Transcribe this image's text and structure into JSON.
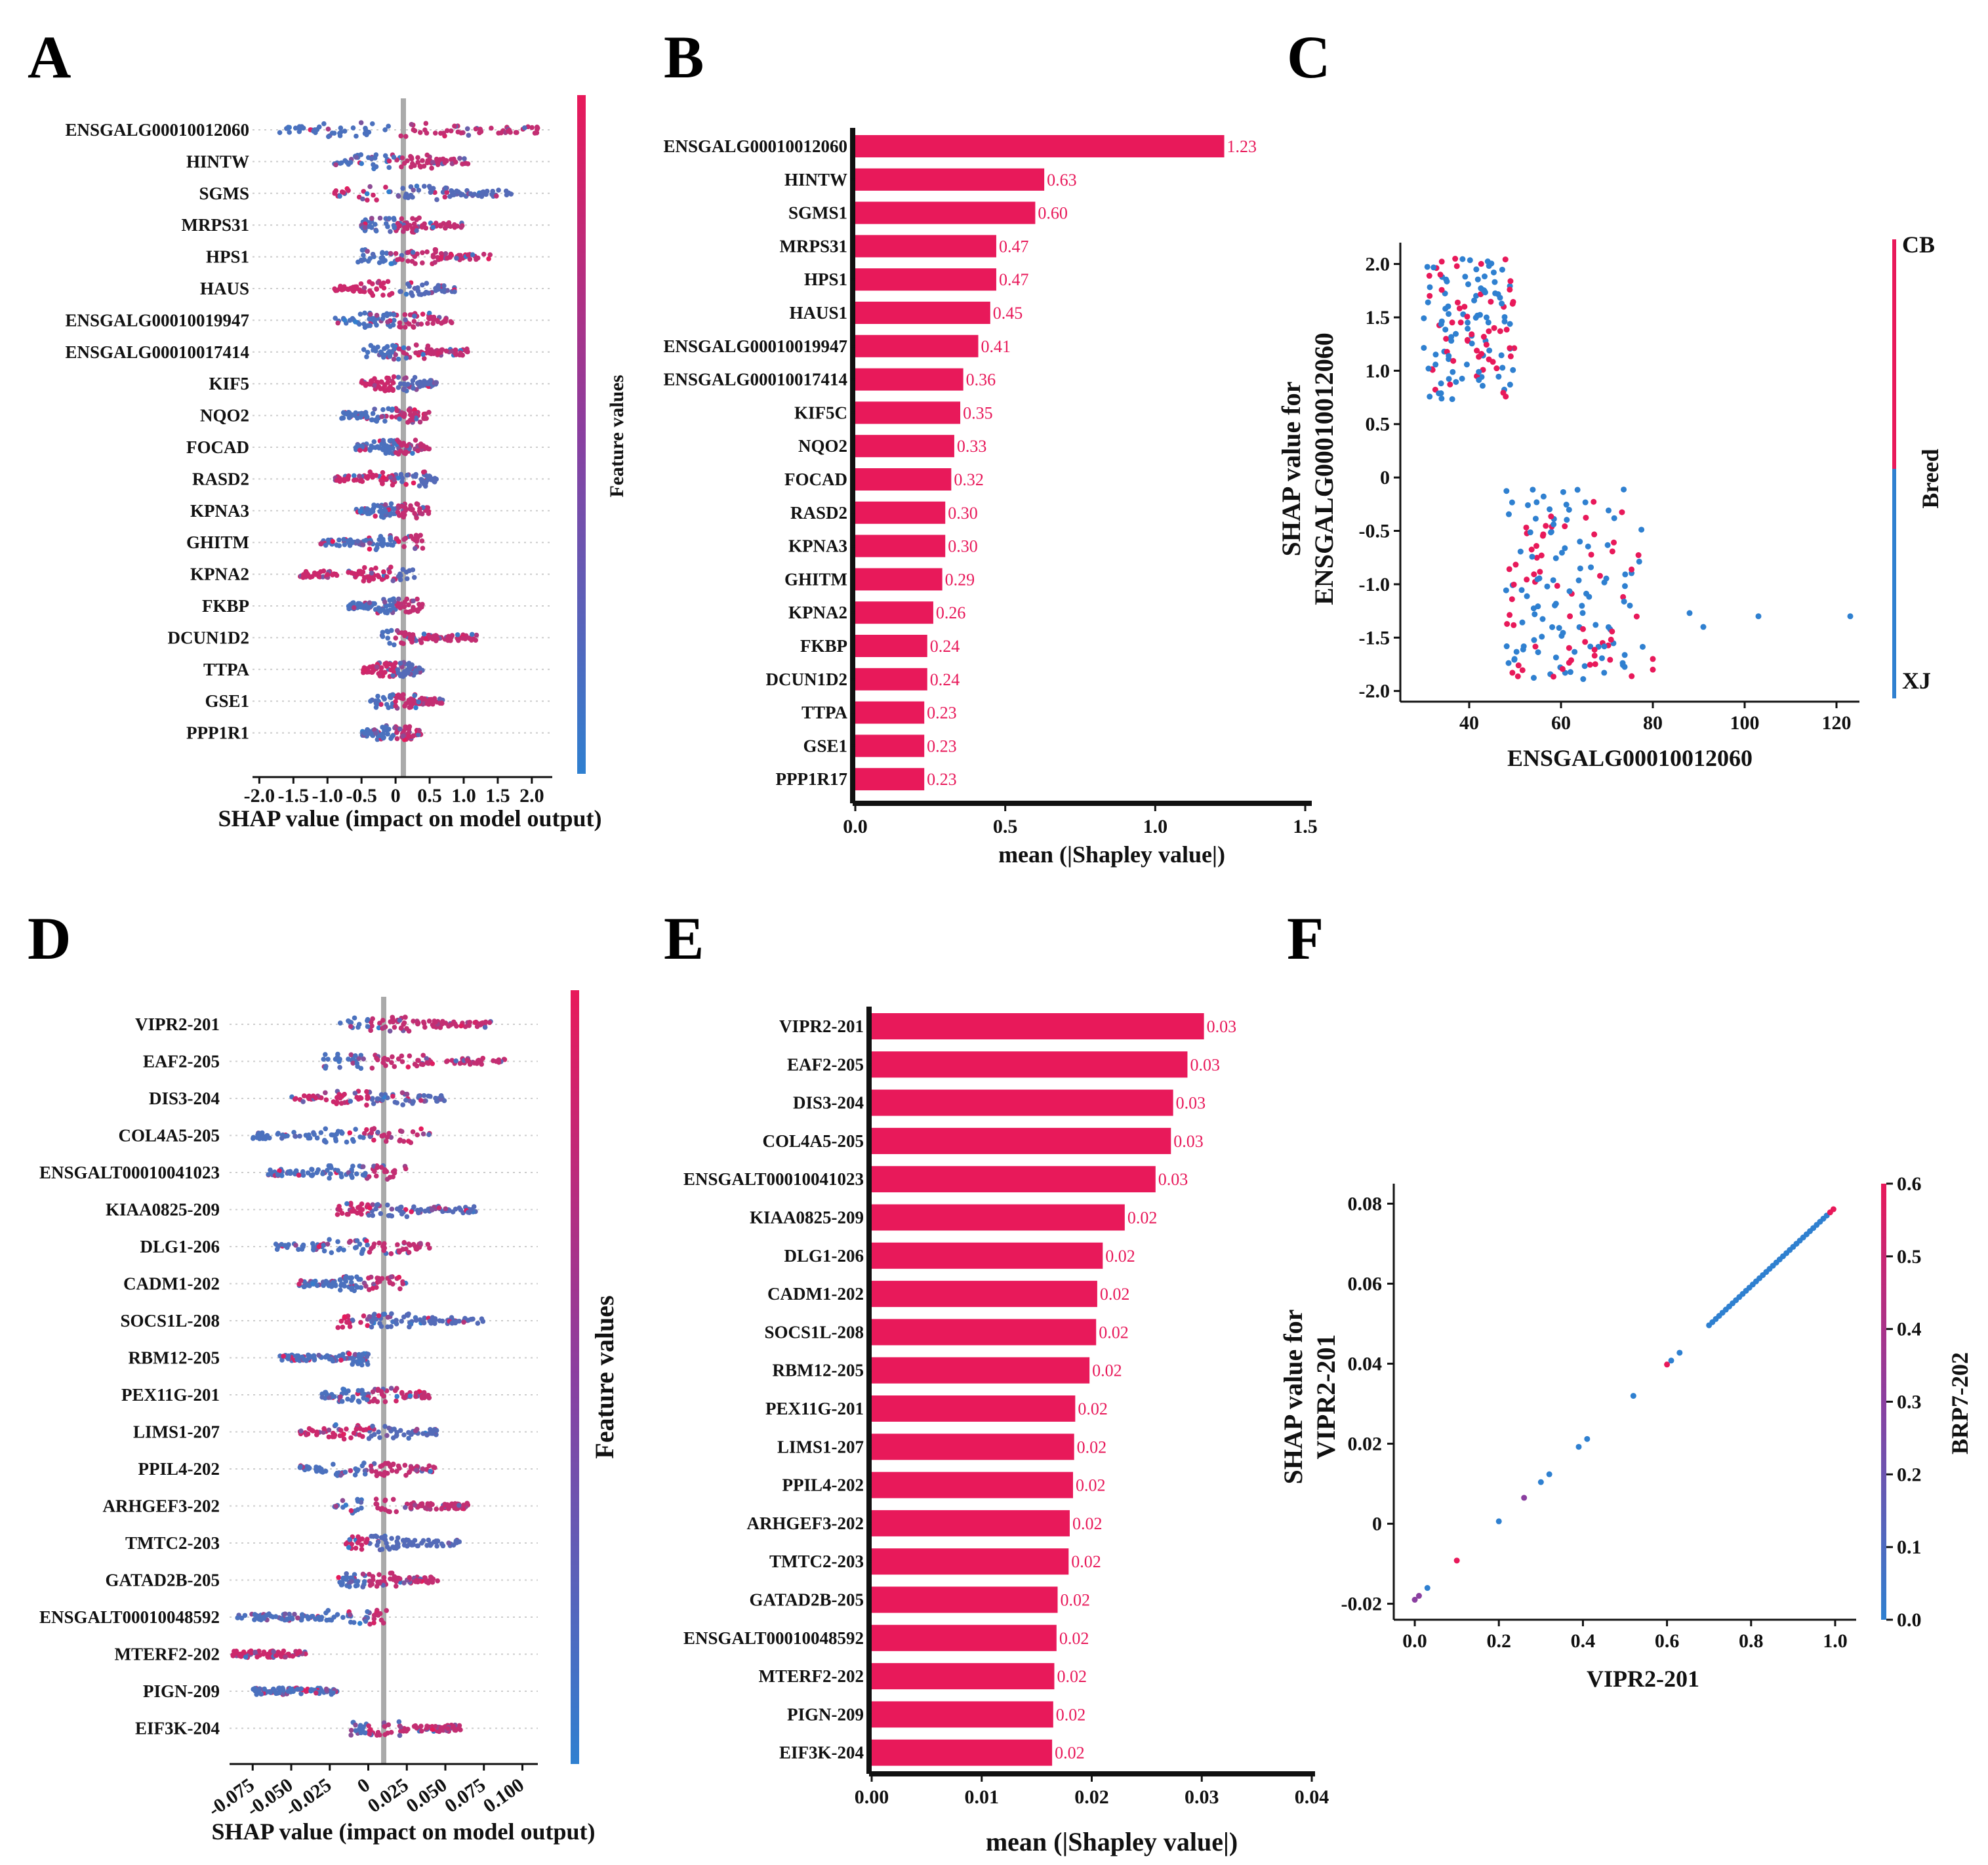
{
  "colors": {
    "red": "#e8195a",
    "blue": "#2f80d0",
    "axis": "#111111",
    "zero": "#aaaaaa"
  },
  "panel_labels": [
    "A",
    "B",
    "C",
    "D",
    "E",
    "F"
  ],
  "chart_data": [
    {
      "id": "A",
      "type": "beeswarm",
      "features": [
        "ENSGALG00010012060",
        "HINTW",
        "SGMS",
        "MRPS31",
        "HPS1",
        "HAUS",
        "ENSGALG00010019947",
        "ENSGALG00010017414",
        "KIF5",
        "NQO2",
        "FOCAD",
        "RASD2",
        "KPNA3",
        "GHITM",
        "KPNA2",
        "FKBP",
        "DCUN1D2",
        "TTPA",
        "GSE1",
        "PPP1R1"
      ],
      "ranges": [
        [
          -1.7,
          2.1
        ],
        [
          -0.9,
          1.1
        ],
        [
          -0.9,
          1.7
        ],
        [
          -0.5,
          1.0
        ],
        [
          -0.6,
          1.4
        ],
        [
          -0.9,
          0.9
        ],
        [
          -0.9,
          0.9
        ],
        [
          -0.5,
          1.1
        ],
        [
          -0.5,
          0.6
        ],
        [
          -0.8,
          0.5
        ],
        [
          -0.6,
          0.5
        ],
        [
          -0.9,
          0.6
        ],
        [
          -0.6,
          0.5
        ],
        [
          -1.1,
          0.4
        ],
        [
          -1.4,
          0.3
        ],
        [
          -0.7,
          0.4
        ],
        [
          -0.2,
          1.2
        ],
        [
          -0.5,
          0.4
        ],
        [
          -0.4,
          0.7
        ],
        [
          -0.5,
          0.4
        ]
      ],
      "xticks": [
        "-2.0",
        "-1.5",
        "-1.0",
        "-0.5",
        "0",
        "0.5",
        "1.0",
        "1.5",
        "2.0"
      ],
      "xlim": [
        -2.1,
        2.3
      ],
      "xlabel": "SHAP value (impact on model output)",
      "colorbar_label": "Feature values"
    },
    {
      "id": "B",
      "type": "bar",
      "categories": [
        "ENSGALG00010012060",
        "HINTW",
        "SGMS1",
        "MRPS31",
        "HPS1",
        "HAUS1",
        "ENSGALG00010019947",
        "ENSGALG00010017414",
        "KIF5C",
        "NQO2",
        "FOCAD",
        "RASD2",
        "KPNA3",
        "GHITM",
        "KPNA2",
        "FKBP",
        "DCUN1D2",
        "TTPA",
        "GSE1",
        "PPP1R17"
      ],
      "values": [
        1.23,
        0.63,
        0.6,
        0.47,
        0.47,
        0.45,
        0.41,
        0.36,
        0.35,
        0.33,
        0.32,
        0.3,
        0.3,
        0.29,
        0.26,
        0.24,
        0.24,
        0.23,
        0.23,
        0.23
      ],
      "value_labels": [
        "1.23",
        "0.63",
        "0.60",
        "0.47",
        "0.47",
        "0.45",
        "0.41",
        "0.36",
        "0.35",
        "0.33",
        "0.32",
        "0.30",
        "0.30",
        "0.29",
        "0.26",
        "0.24",
        "0.24",
        "0.23",
        "0.23",
        "0.23"
      ],
      "xticks": [
        "0.0",
        "0.5",
        "1.0",
        "1.5"
      ],
      "xlim": [
        0,
        1.5
      ],
      "xlabel": "mean (|Shapley value|)"
    },
    {
      "id": "C",
      "type": "scatter",
      "xlabel": "ENSGALG00010012060",
      "ylabel": [
        "SHAP value for",
        "ENSGALG00010012060"
      ],
      "xticks": [
        "40",
        "60",
        "80",
        "100",
        "120"
      ],
      "yticks": [
        "2.0",
        "1.5",
        "1.0",
        "0.5",
        "0",
        "-0.5",
        "-1.0",
        "-1.5",
        "-2.0"
      ],
      "xlim": [
        25,
        125
      ],
      "ylim": [
        -2.1,
        2.2
      ],
      "colorbar": {
        "label": "Breed",
        "top": "CB",
        "bottom": "XJ"
      },
      "clusters": [
        {
          "x": [
            30,
            50
          ],
          "y": [
            0.7,
            2.05
          ],
          "n": 140,
          "red_fraction": 0.4
        },
        {
          "x": [
            48,
            78
          ],
          "y": [
            -1.9,
            -0.1
          ],
          "n": 160,
          "red_fraction": 0.45
        }
      ],
      "outliers": [
        {
          "x": 123,
          "y": -1.3
        },
        {
          "x": 103,
          "y": -1.3
        },
        {
          "x": 91,
          "y": -1.4
        },
        {
          "x": 88,
          "y": -1.27
        },
        {
          "x": 80,
          "y": -1.7
        },
        {
          "x": 80,
          "y": -1.8
        },
        {
          "x": 75,
          "y": -1.2
        }
      ]
    },
    {
      "id": "D",
      "type": "beeswarm",
      "features": [
        "VIPR2-201",
        "EAF2-205",
        "DIS3-204",
        "COL4A5-205",
        "ENSGALT00010041023",
        "KIAA0825-209",
        "DLG1-206",
        "CADM1-202",
        "SOCS1L-208",
        "RBM12-205",
        "PEX11G-201",
        "LIMS1-207",
        "PPIL4-202",
        "ARHGEF3-202",
        "TMTC2-203",
        "GATAD2B-205",
        "ENSGALT00010048592",
        "MTERF2-202",
        "PIGN-209",
        "EIF3K-204"
      ],
      "ranges": [
        [
          -0.02,
          0.08
        ],
        [
          -0.03,
          0.09
        ],
        [
          -0.05,
          0.05
        ],
        [
          -0.075,
          0.04
        ],
        [
          -0.065,
          0.025
        ],
        [
          -0.02,
          0.07
        ],
        [
          -0.06,
          0.04
        ],
        [
          -0.045,
          0.025
        ],
        [
          -0.02,
          0.075
        ],
        [
          -0.058,
          0.0
        ],
        [
          -0.03,
          0.04
        ],
        [
          -0.045,
          0.045
        ],
        [
          -0.045,
          0.045
        ],
        [
          -0.022,
          0.065
        ],
        [
          -0.015,
          0.06
        ],
        [
          -0.02,
          0.045
        ],
        [
          -0.085,
          0.012
        ],
        [
          -0.088,
          -0.04
        ],
        [
          -0.075,
          -0.02
        ],
        [
          -0.012,
          0.06
        ]
      ],
      "xticks": [
        "-0.075",
        "-0.050",
        "-0.025",
        "0",
        "0.025",
        "0.050",
        "0.075",
        "0.100"
      ],
      "xlim": [
        -0.09,
        0.11
      ],
      "xlabel": "SHAP value (impact on model output)",
      "colorbar_label": "Feature values"
    },
    {
      "id": "E",
      "type": "bar",
      "categories": [
        "VIPR2-201",
        "EAF2-205",
        "DIS3-204",
        "COL4A5-205",
        "ENSGALT00010041023",
        "KIAA0825-209",
        "DLG1-206",
        "CADM1-202",
        "SOCS1L-208",
        "RBM12-205",
        "PEX11G-201",
        "LIMS1-207",
        "PPIL4-202",
        "ARHGEF3-202",
        "TMTC2-203",
        "GATAD2B-205",
        "ENSGALT00010048592",
        "MTERF2-202",
        "PIGN-209",
        "EIF3K-204"
      ],
      "values": [
        0.0302,
        0.0287,
        0.0274,
        0.0272,
        0.0258,
        0.023,
        0.021,
        0.0205,
        0.0204,
        0.0198,
        0.0185,
        0.0184,
        0.0183,
        0.018,
        0.0179,
        0.0169,
        0.0168,
        0.0166,
        0.0165,
        0.0164
      ],
      "value_labels": [
        "0.03",
        "0.03",
        "0.03",
        "0.03",
        "0.03",
        "0.02",
        "0.02",
        "0.02",
        "0.02",
        "0.02",
        "0.02",
        "0.02",
        "0.02",
        "0.02",
        "0.02",
        "0.02",
        "0.02",
        "0.02",
        "0.02",
        "0.02"
      ],
      "xticks": [
        "0.00",
        "0.01",
        "0.02",
        "0.03",
        "0.04"
      ],
      "xlim": [
        0,
        0.04
      ],
      "xlabel": "mean (|Shapley value|)"
    },
    {
      "id": "F",
      "type": "scatter",
      "xlabel": "VIPR2-201",
      "ylabel": [
        "SHAP value for",
        "VIPR2-201"
      ],
      "xticks": [
        "0.0",
        "0.2",
        "0.4",
        "0.6",
        "0.8",
        "1.0"
      ],
      "yticks": [
        "0.08",
        "0.06",
        "0.04",
        "0.02",
        "0",
        "-0.02"
      ],
      "xlim": [
        -0.05,
        1.05
      ],
      "ylim": [
        -0.024,
        0.085
      ],
      "line": {
        "x0": 0.0,
        "y0": -0.019,
        "x1": 1.0,
        "y1": 0.079
      },
      "colorbar": {
        "label": "BRP7-202",
        "ticks": [
          "0.6",
          "0.5",
          "0.4",
          "0.3",
          "0.2",
          "0.1",
          "0.0"
        ]
      }
    }
  ]
}
